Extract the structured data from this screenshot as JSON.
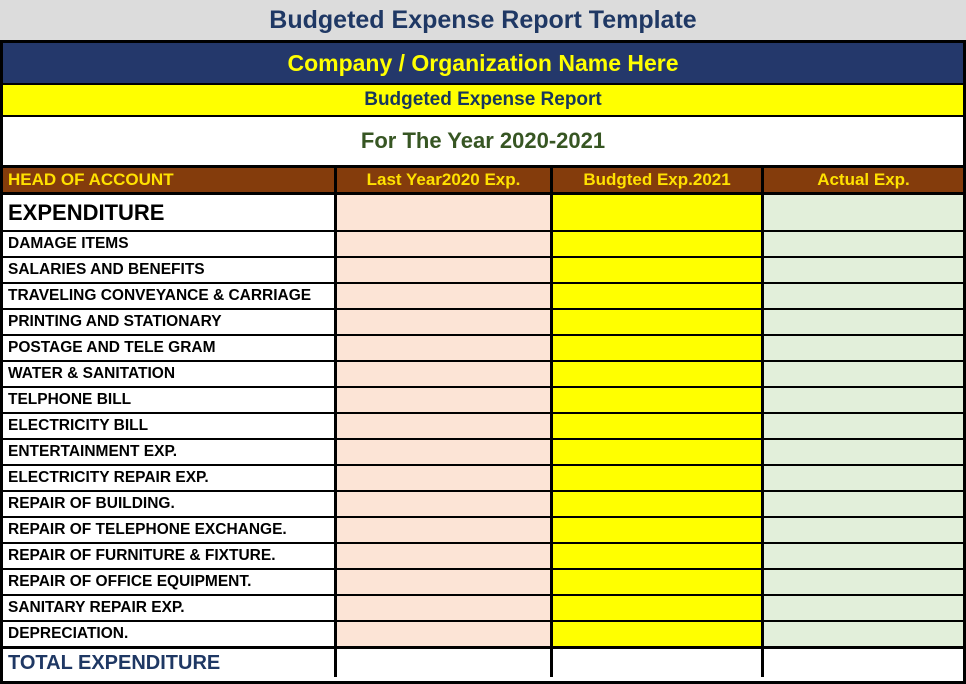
{
  "page": {
    "template_title": "Budgeted Expense Report Template",
    "company_name": "Company / Organization Name Here",
    "report_title": "Budgeted Expense Report",
    "year_line": "For The Year 2020-2021"
  },
  "colors": {
    "title_bar_bg": "#DCDCDC",
    "title_text": "#1F3864",
    "company_bar_bg": "#24386B",
    "company_text": "#FFFF00",
    "report_bar_bg": "#FFFF00",
    "report_text": "#17365D",
    "year_text": "#375623",
    "table_header_bg": "#843C0C",
    "table_header_text": "#FFE100",
    "last_year_column_bg": "#FCE4D6",
    "budget_column_bg": "#FFFF00",
    "actual_column_bg": "#E2EFDA",
    "total_row_text": "#1F3864",
    "grid_border": "#000000"
  },
  "table": {
    "headers": [
      "HEAD OF ACCOUNT",
      "Last Year2020 Exp.",
      "Budgted Exp.2021",
      "Actual Exp."
    ],
    "section_label": "EXPENDITURE",
    "items": [
      "DAMAGE ITEMS",
      "SALARIES AND BENEFITS",
      "TRAVELING CONVEYANCE & CARRIAGE",
      "PRINTING AND STATIONARY",
      "POSTAGE AND TELE GRAM",
      "WATER & SANITATION",
      "TELPHONE BILL",
      "ELECTRICITY BILL",
      "ENTERTAINMENT EXP.",
      "ELECTRICITY REPAIR EXP.",
      "REPAIR OF BUILDING.",
      "REPAIR OF TELEPHONE EXCHANGE.",
      "REPAIR OF FURNITURE & FIXTURE.",
      "REPAIR OF OFFICE EQUIPMENT.",
      "SANITARY REPAIR EXP.",
      "DEPRECIATION."
    ],
    "total_label": "TOTAL EXPENDITURE",
    "empty_cell": ""
  }
}
